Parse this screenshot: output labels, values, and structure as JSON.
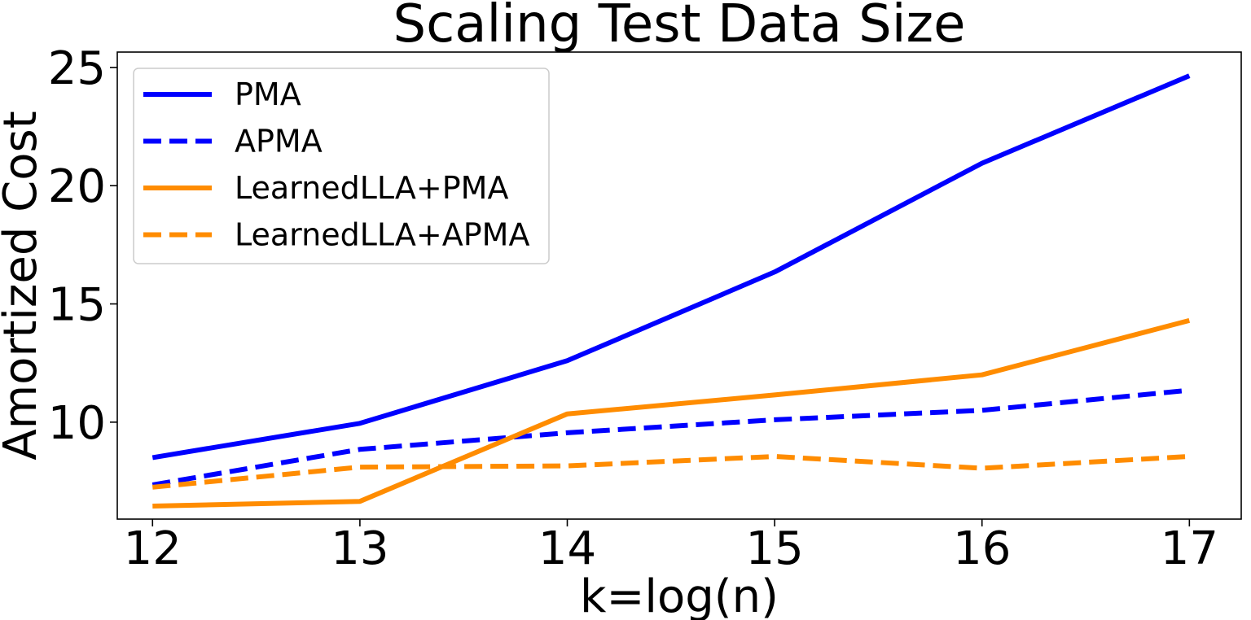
{
  "chart_data": {
    "type": "line",
    "title": "Scaling Test Data Size",
    "xlabel": "k=log(n)",
    "ylabel": "Amortized Cost",
    "x": [
      12,
      13,
      14,
      15,
      16,
      17
    ],
    "xticks": [
      "12",
      "13",
      "14",
      "15",
      "16",
      "17"
    ],
    "yticks": [
      10,
      15,
      20,
      25
    ],
    "ytick_labels": [
      "10",
      "15",
      "20",
      "25"
    ],
    "xlim": [
      11.83,
      17.25
    ],
    "ylim": [
      5.9,
      25.65
    ],
    "grid": false,
    "legend_position": "upper-left",
    "series": [
      {
        "name": "PMA",
        "color": "#0000ff",
        "style": "solid",
        "values": [
          8.5,
          9.95,
          12.6,
          16.35,
          20.95,
          24.65
        ]
      },
      {
        "name": "APMA",
        "color": "#0000ff",
        "style": "dashed",
        "values": [
          7.35,
          8.85,
          9.55,
          10.1,
          10.5,
          11.35
        ]
      },
      {
        "name": "LearnedLLA+PMA",
        "color": "#ff8c00",
        "style": "solid",
        "values": [
          6.45,
          6.65,
          10.35,
          11.15,
          12.0,
          14.3
        ]
      },
      {
        "name": "LearnedLLA+APMA",
        "color": "#ff8c00",
        "style": "dashed",
        "values": [
          7.25,
          8.1,
          8.15,
          8.55,
          8.05,
          8.55
        ]
      }
    ]
  }
}
